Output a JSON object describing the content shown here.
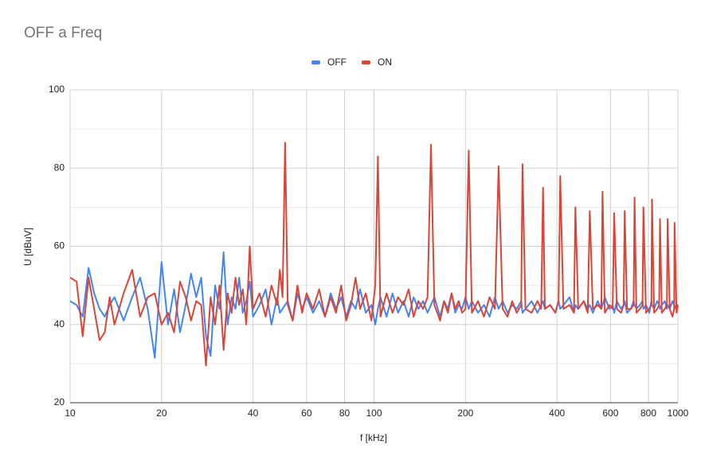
{
  "chart_data": {
    "type": "line",
    "title": "OFF a Freq",
    "x_label": "f [kHz]",
    "y_label": "U [dBuV]",
    "x_scale": "log",
    "grid": true,
    "legend_position": "top",
    "xlim": [
      10,
      1000
    ],
    "xticks": [
      10,
      20,
      40,
      60,
      80,
      100,
      200,
      400,
      600,
      800,
      1000
    ],
    "ylim": [
      20,
      100
    ],
    "yticks": [
      20,
      40,
      60,
      80,
      100
    ],
    "y_minor_grid": [
      30,
      50,
      70,
      90
    ],
    "x": [
      10,
      10.5,
      11,
      11.5,
      12,
      12.5,
      13,
      13.5,
      14,
      15,
      16,
      17,
      18,
      19,
      20,
      21,
      22,
      23,
      24,
      25,
      26,
      27,
      28,
      29,
      30,
      31,
      32,
      33,
      34,
      35,
      36,
      37,
      38,
      39,
      40,
      42,
      44,
      46,
      48,
      49,
      50,
      51,
      52,
      54,
      56,
      58,
      60,
      63,
      66,
      69,
      72,
      75,
      78,
      81,
      84,
      87,
      90,
      94,
      98,
      101,
      103,
      105,
      110,
      115,
      120,
      125,
      130,
      135,
      140,
      145,
      150,
      154,
      158,
      165,
      170,
      175,
      180,
      185,
      190,
      195,
      200,
      205,
      210,
      220,
      230,
      240,
      250,
      257,
      265,
      275,
      285,
      295,
      305,
      308,
      315,
      330,
      345,
      355,
      360,
      365,
      380,
      395,
      405,
      410,
      420,
      440,
      455,
      460,
      470,
      490,
      505,
      513,
      525,
      545,
      560,
      565,
      575,
      595,
      610,
      617,
      630,
      650,
      663,
      668,
      680,
      700,
      715,
      720,
      730,
      750,
      765,
      770,
      785,
      805,
      818,
      822,
      835,
      855,
      868,
      873,
      885,
      905,
      920,
      925,
      940,
      960,
      972,
      975,
      990,
      1000
    ],
    "series": [
      {
        "name": "OFF",
        "color": "#4285f4",
        "values": [
          46,
          45,
          42,
          54.5,
          48,
          44,
          42,
          45,
          47,
          41,
          47,
          52,
          44,
          31.5,
          56,
          40,
          49,
          38,
          45,
          53,
          47,
          52,
          37,
          32,
          50,
          44,
          58.5,
          40,
          47,
          44,
          52,
          43,
          46,
          51,
          42,
          45,
          49,
          40,
          47,
          43,
          44,
          45,
          46,
          41,
          48,
          44,
          47,
          43,
          46,
          42,
          48,
          44,
          47,
          42,
          46,
          44,
          49,
          43,
          45,
          40,
          44,
          47,
          42,
          48,
          43,
          46,
          42,
          47,
          44,
          46,
          43,
          45,
          47,
          42,
          46,
          44,
          48,
          43,
          45,
          44,
          47,
          44,
          46,
          43,
          45,
          42,
          47,
          44,
          46,
          43,
          45,
          44,
          46,
          43,
          44,
          46,
          43,
          45,
          46,
          44,
          45,
          43,
          46,
          44,
          45,
          47,
          43,
          45,
          44,
          46,
          44,
          45,
          43,
          46,
          44,
          45,
          47,
          44,
          45,
          43,
          46,
          44,
          45,
          46,
          43,
          44,
          46,
          45,
          44,
          45,
          46,
          44,
          45,
          43,
          46,
          45,
          44,
          46,
          45,
          44,
          45,
          46,
          44,
          45,
          44,
          46,
          45,
          44,
          45,
          45
        ]
      },
      {
        "name": "ON",
        "color": "#db4437",
        "values": [
          52,
          51,
          37,
          52,
          44,
          36,
          38,
          47,
          40,
          48,
          54,
          42,
          47,
          48,
          40,
          43,
          38,
          51,
          47,
          41,
          46,
          45,
          29.5,
          47,
          40,
          50,
          33.5,
          48,
          43,
          52,
          45,
          49,
          40,
          60,
          44,
          48,
          42,
          50,
          45,
          54,
          47,
          86.5,
          45,
          41,
          50,
          43,
          48,
          44,
          49,
          42,
          47,
          43,
          50,
          41,
          45,
          52,
          44,
          48,
          41,
          50,
          83,
          42,
          48,
          43,
          47,
          45,
          49,
          42,
          46,
          44,
          47,
          86,
          45,
          41,
          46,
          43,
          48,
          44,
          46,
          43,
          44,
          84.5,
          43,
          46,
          42,
          47,
          44,
          80.5,
          44,
          42,
          46,
          43,
          45,
          81,
          44,
          43,
          46,
          44,
          75,
          44,
          45,
          43,
          46,
          78,
          44,
          45,
          43,
          70,
          44,
          46,
          43,
          69,
          44,
          45,
          44,
          74,
          43,
          45,
          44,
          68.5,
          44,
          43,
          45,
          69,
          44,
          44,
          45,
          72.5,
          43,
          44,
          45,
          70,
          43,
          44,
          45,
          72,
          43,
          44,
          45,
          67,
          43,
          44,
          45,
          67,
          44,
          42,
          44,
          66,
          43,
          45
        ]
      }
    ]
  }
}
